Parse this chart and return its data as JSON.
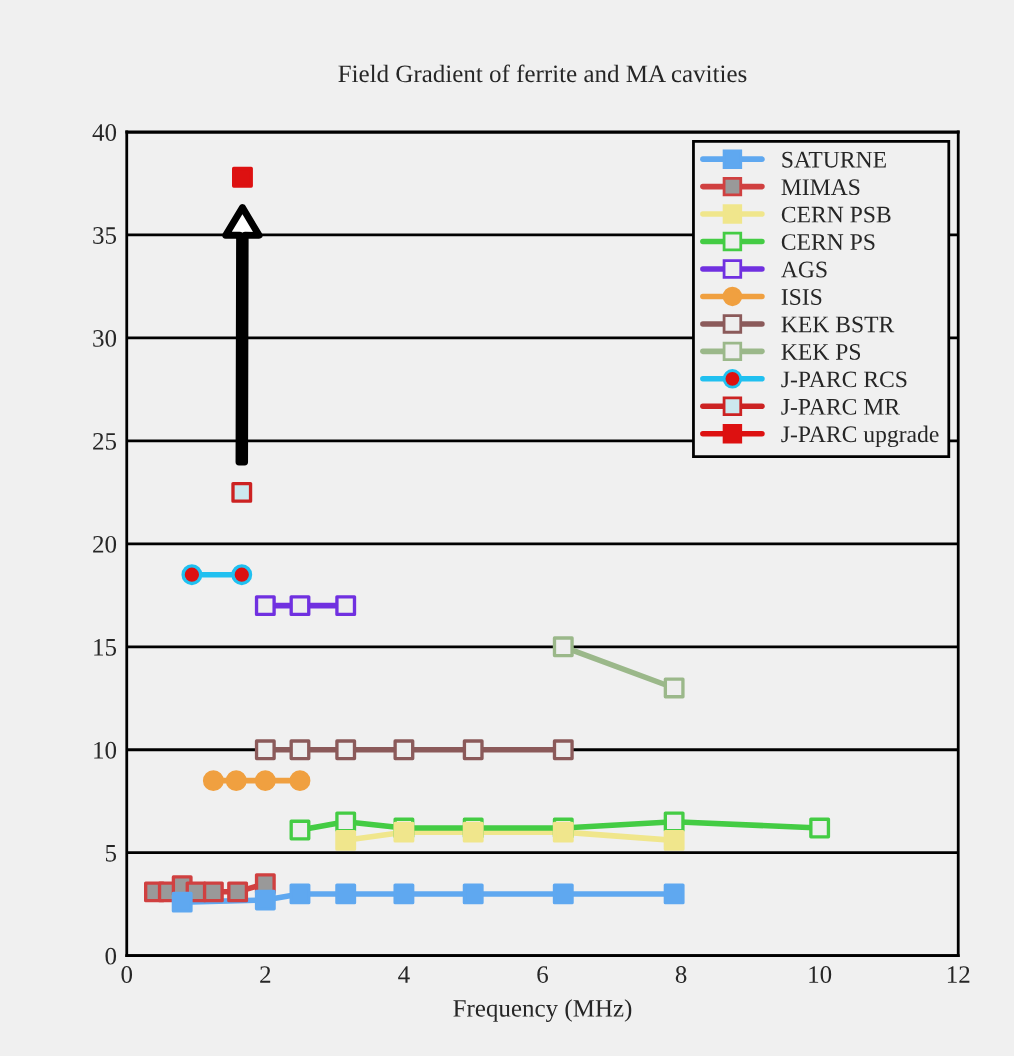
{
  "chart_data": {
    "type": "line",
    "title": "Field Gradient of ferrite and MA cavities",
    "xlabel": "Frequency (MHz)",
    "xlim": [
      0,
      12
    ],
    "xticks": [
      0,
      2,
      4,
      6,
      8,
      10,
      12
    ],
    "ylim": [
      0,
      40
    ],
    "yticks": [
      0,
      5,
      10,
      15,
      20,
      25,
      30,
      35,
      40
    ],
    "grid": "y",
    "legend": "top right",
    "marker": "square",
    "line_style": "solid",
    "series": [
      {
        "name": "SATURNE",
        "color": "#5fa8f0",
        "x": [
          0.8,
          2.0,
          2.5,
          3.16,
          4.0,
          5.0,
          6.3,
          7.9
        ],
        "values": [
          2.6,
          2.7,
          3.0,
          3.0,
          3.0,
          3.0,
          3.0,
          3.0
        ],
        "colors": [
          "#5fa8f0",
          "#5fa8f0",
          "#5fa8f0",
          "#5fa8f0",
          "#5fa8f0",
          "#5fa8f0",
          "#5fa8f0",
          "#5fa8f0"
        ]
      },
      {
        "name": "MIMAS",
        "color": "#d04040",
        "x": [
          0.4,
          0.6,
          0.8,
          1.0,
          1.25,
          1.6,
          2.0
        ],
        "values": [
          3.1,
          3.1,
          3.4,
          3.1,
          3.1,
          3.1,
          3.5
        ],
        "colors": [
          "#999999",
          "#999999",
          "#999999",
          "#999999",
          "#999999",
          "#999999",
          "#999999"
        ]
      },
      {
        "name": "CERN PSB",
        "color": "#f0e68c",
        "x": [
          3.16,
          4.0,
          5.0,
          6.3,
          7.9
        ],
        "values": [
          5.6,
          6.0,
          6.0,
          6.0,
          5.6
        ],
        "colors": [
          "#f0e68c",
          "#f0e68c",
          "#f0e68c",
          "#f0e68c",
          "#f0e68c"
        ]
      },
      {
        "name": "CERN PS",
        "color": "#44cc44",
        "x": [
          2.5,
          3.16,
          4.0,
          5.0,
          6.3,
          7.9,
          10.0
        ],
        "values": [
          6.1,
          6.5,
          6.2,
          6.2,
          6.2,
          6.5,
          6.2
        ],
        "colors": [
          "#eeeeee",
          "#eeeeee",
          "#eeeeee",
          "#eeeeee",
          "#eeeeee",
          "#eeeeee",
          "#eeeeee"
        ]
      },
      {
        "name": "AGS",
        "color": "#7030e0",
        "x": [
          2.0,
          2.5,
          3.16
        ],
        "values": [
          17.0,
          17.0,
          17.0
        ],
        "colors": [
          "#eeeeee",
          "#eeeeee",
          "#eeeeee"
        ]
      },
      {
        "name": "ISIS",
        "color": "#f0a040",
        "marker": "circle",
        "x": [
          1.25,
          1.58,
          2.0,
          2.5
        ],
        "values": [
          8.5,
          8.5,
          8.5,
          8.5
        ],
        "colors": [
          "#f0a040",
          "#f0a040",
          "#f0a040",
          "#f0a040"
        ]
      },
      {
        "name": "KEK BSTR",
        "color": "#8b5a5a",
        "x": [
          2.0,
          2.5,
          3.16,
          4.0,
          5.0,
          6.3
        ],
        "values": [
          10.0,
          10.0,
          10.0,
          10.0,
          10.0,
          10.0
        ],
        "colors": [
          "#eeeeee",
          "#eeeeee",
          "#eeeeee",
          "#eeeeee",
          "#eeeeee",
          "#eeeeee"
        ]
      },
      {
        "name": "KEK PS",
        "color": "#9bb88a",
        "x": [
          6.3,
          7.9
        ],
        "values": [
          15.0,
          13.0
        ],
        "colors": [
          "#eeeeee",
          "#eeeeee"
        ]
      },
      {
        "name": "J-PARC RCS",
        "color": "#20c0f0",
        "marker": "circle",
        "x": [
          0.94,
          1.66
        ],
        "values": [
          18.5,
          18.5
        ],
        "colors": [
          "#dd1111",
          "#dd1111"
        ]
      },
      {
        "name": "J-PARC MR",
        "color": "#cc2222",
        "x": [
          1.66
        ],
        "values": [
          22.5
        ],
        "colors": [
          "#cce8ee"
        ]
      },
      {
        "name": "J-PARC upgrade",
        "color": "#dd1111",
        "x": [
          1.67
        ],
        "values": [
          37.8
        ],
        "colors": [
          "#dd1111"
        ]
      }
    ]
  }
}
